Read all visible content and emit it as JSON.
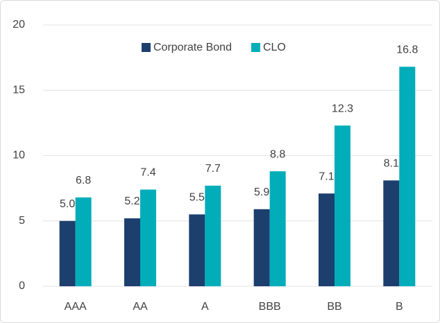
{
  "chart_data": {
    "type": "bar",
    "categories": [
      "AAA",
      "AA",
      "A",
      "BBB",
      "BB",
      "B"
    ],
    "series": [
      {
        "name": "Corporate Bond",
        "color": "#1c3f6e",
        "values": [
          5.0,
          5.2,
          5.5,
          5.9,
          7.1,
          8.1
        ],
        "value_labels": [
          "5.0",
          "5.2",
          "5.5",
          "5.9",
          "7.1",
          "8.1"
        ]
      },
      {
        "name": "CLO",
        "color": "#00adb9",
        "values": [
          6.8,
          7.4,
          7.7,
          8.8,
          12.3,
          16.8
        ],
        "value_labels": [
          "6.8",
          "7.4",
          "7.7",
          "8.8",
          "12.3",
          "16.8"
        ]
      }
    ],
    "ylim": [
      0,
      20
    ],
    "yticks": [
      0,
      5,
      10,
      15,
      20
    ],
    "grid": true,
    "legend": "top"
  }
}
